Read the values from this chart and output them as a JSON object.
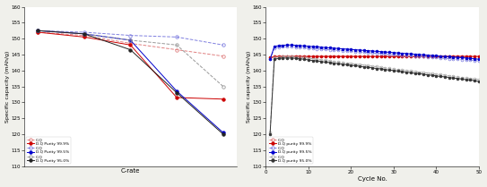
{
  "left": {
    "xlabel": "C-rate",
    "ylabel": "Specific capacity (mAh/g)",
    "ylim": [
      110,
      160
    ],
    "x_positions": [
      0,
      1,
      2,
      3,
      4
    ],
    "series": [
      {
        "label": "C.Q",
        "color": "#e08080",
        "linestyle": "--",
        "marker": "o",
        "fillstyle": "none",
        "values": [
          152.0,
          151.0,
          148.5,
          146.5,
          144.5
        ]
      },
      {
        "label": "D.Q Purity 99.9%",
        "color": "#cc0000",
        "linestyle": "-",
        "marker": "o",
        "fillstyle": "full",
        "values": [
          152.0,
          150.5,
          148.0,
          131.5,
          131.0
        ]
      },
      {
        "label": "C.Q",
        "color": "#8080e0",
        "linestyle": "--",
        "marker": "o",
        "fillstyle": "none",
        "values": [
          152.5,
          152.0,
          151.0,
          150.5,
          148.0
        ]
      },
      {
        "label": "D.Q Purity 99.5%",
        "color": "#0000cc",
        "linestyle": "-",
        "marker": "o",
        "fillstyle": "full",
        "values": [
          152.5,
          151.5,
          149.5,
          133.5,
          120.5
        ]
      },
      {
        "label": "C.Q",
        "color": "#999999",
        "linestyle": "--",
        "marker": "o",
        "fillstyle": "none",
        "values": [
          152.5,
          151.5,
          149.5,
          148.0,
          135.0
        ]
      },
      {
        "label": "D.Q Purity 95.0%",
        "color": "#222222",
        "linestyle": "-",
        "marker": "o",
        "fillstyle": "full",
        "values": [
          152.5,
          151.5,
          146.5,
          133.0,
          120.0
        ]
      }
    ]
  },
  "right": {
    "xlabel": "Cycle No.",
    "ylabel": "Specific capacity (mAh/g)",
    "ylim": [
      110,
      160
    ],
    "xlim": [
      0,
      50
    ],
    "xticks": [
      0,
      10,
      20,
      30,
      40,
      50
    ],
    "series": [
      {
        "label": "C.Q",
        "color": "#e08080",
        "linestyle": "--",
        "marker": "o",
        "fillstyle": "none",
        "x": [
          1,
          2,
          3,
          4,
          5,
          6,
          7,
          8,
          9,
          10,
          11,
          12,
          13,
          14,
          15,
          16,
          17,
          18,
          19,
          20,
          21,
          22,
          23,
          24,
          25,
          26,
          27,
          28,
          29,
          30,
          31,
          32,
          33,
          34,
          35,
          36,
          37,
          38,
          39,
          40,
          41,
          42,
          43,
          44,
          45,
          46,
          47,
          48,
          49,
          50
        ],
        "values": [
          144.0,
          144.3,
          144.4,
          144.4,
          144.4,
          144.4,
          144.4,
          144.4,
          144.4,
          144.4,
          144.4,
          144.4,
          144.4,
          144.4,
          144.4,
          144.4,
          144.4,
          144.4,
          144.4,
          144.4,
          144.4,
          144.4,
          144.4,
          144.4,
          144.4,
          144.4,
          144.4,
          144.4,
          144.4,
          144.4,
          144.4,
          144.4,
          144.4,
          144.4,
          144.4,
          144.4,
          144.4,
          144.4,
          144.4,
          144.4,
          144.4,
          144.4,
          144.4,
          144.4,
          144.4,
          144.4,
          144.4,
          144.4,
          144.4,
          144.4
        ]
      },
      {
        "label": "D.Q purity 99.9%",
        "color": "#cc0000",
        "linestyle": "-",
        "marker": "o",
        "fillstyle": "full",
        "x": [
          1,
          2,
          3,
          4,
          5,
          6,
          7,
          8,
          9,
          10,
          11,
          12,
          13,
          14,
          15,
          16,
          17,
          18,
          19,
          20,
          21,
          22,
          23,
          24,
          25,
          26,
          27,
          28,
          29,
          30,
          31,
          32,
          33,
          34,
          35,
          36,
          37,
          38,
          39,
          40,
          41,
          42,
          43,
          44,
          45,
          46,
          47,
          48,
          49,
          50
        ],
        "values": [
          144.0,
          144.3,
          144.4,
          144.4,
          144.4,
          144.4,
          144.4,
          144.4,
          144.4,
          144.4,
          144.4,
          144.4,
          144.4,
          144.4,
          144.4,
          144.4,
          144.4,
          144.4,
          144.4,
          144.4,
          144.4,
          144.4,
          144.4,
          144.4,
          144.4,
          144.4,
          144.4,
          144.4,
          144.4,
          144.4,
          144.4,
          144.4,
          144.4,
          144.4,
          144.4,
          144.4,
          144.4,
          144.4,
          144.4,
          144.4,
          144.4,
          144.4,
          144.4,
          144.4,
          144.4,
          144.4,
          144.4,
          144.4,
          144.4,
          144.4
        ]
      },
      {
        "label": "C.Q",
        "color": "#8080e0",
        "linestyle": "--",
        "marker": "o",
        "fillstyle": "none",
        "x": [
          1,
          2,
          3,
          4,
          5,
          6,
          7,
          8,
          9,
          10,
          11,
          12,
          13,
          14,
          15,
          16,
          17,
          18,
          19,
          20,
          21,
          22,
          23,
          24,
          25,
          26,
          27,
          28,
          29,
          30,
          31,
          32,
          33,
          34,
          35,
          36,
          37,
          38,
          39,
          40,
          41,
          42,
          43,
          44,
          45,
          46,
          47,
          48,
          49,
          50
        ],
        "values": [
          143.5,
          147.0,
          147.3,
          147.4,
          147.4,
          147.4,
          147.3,
          147.2,
          147.1,
          147.0,
          146.9,
          146.8,
          146.7,
          146.6,
          146.5,
          146.4,
          146.3,
          146.2,
          146.1,
          146.0,
          145.9,
          145.8,
          145.7,
          145.6,
          145.5,
          145.4,
          145.3,
          145.2,
          145.1,
          145.0,
          144.9,
          144.8,
          144.7,
          144.6,
          144.5,
          144.4,
          144.3,
          144.2,
          144.1,
          144.0,
          143.9,
          143.8,
          143.7,
          143.6,
          143.5,
          143.4,
          143.3,
          143.2,
          143.1,
          143.0
        ]
      },
      {
        "label": "D.Q purity 99.5%",
        "color": "#0000cc",
        "linestyle": "-",
        "marker": "o",
        "fillstyle": "full",
        "x": [
          1,
          2,
          3,
          4,
          5,
          6,
          7,
          8,
          9,
          10,
          11,
          12,
          13,
          14,
          15,
          16,
          17,
          18,
          19,
          20,
          21,
          22,
          23,
          24,
          25,
          26,
          27,
          28,
          29,
          30,
          31,
          32,
          33,
          34,
          35,
          36,
          37,
          38,
          39,
          40,
          41,
          42,
          43,
          44,
          45,
          46,
          47,
          48,
          49,
          50
        ],
        "values": [
          143.5,
          147.5,
          147.8,
          147.9,
          148.0,
          148.0,
          147.9,
          147.8,
          147.7,
          147.6,
          147.5,
          147.4,
          147.3,
          147.2,
          147.1,
          147.0,
          146.9,
          146.8,
          146.7,
          146.6,
          146.5,
          146.4,
          146.3,
          146.2,
          146.1,
          146.0,
          145.9,
          145.8,
          145.7,
          145.6,
          145.5,
          145.4,
          145.3,
          145.2,
          145.1,
          145.0,
          144.9,
          144.8,
          144.7,
          144.6,
          144.5,
          144.4,
          144.3,
          144.2,
          144.1,
          144.0,
          143.9,
          143.8,
          143.7,
          143.5
        ]
      },
      {
        "label": "C.Q",
        "color": "#aaaaaa",
        "linestyle": "--",
        "marker": "o",
        "fillstyle": "none",
        "x": [
          1,
          2,
          3,
          4,
          5,
          6,
          7,
          8,
          9,
          10,
          11,
          12,
          13,
          14,
          15,
          16,
          17,
          18,
          19,
          20,
          21,
          22,
          23,
          24,
          25,
          26,
          27,
          28,
          29,
          30,
          31,
          32,
          33,
          34,
          35,
          36,
          37,
          38,
          39,
          40,
          41,
          42,
          43,
          44,
          45,
          46,
          47,
          48,
          49,
          50
        ],
        "values": [
          120.5,
          144.0,
          144.2,
          144.3,
          144.3,
          144.3,
          144.2,
          144.1,
          144.0,
          143.8,
          143.7,
          143.5,
          143.3,
          143.2,
          143.0,
          142.8,
          142.7,
          142.5,
          142.3,
          142.2,
          142.0,
          141.8,
          141.7,
          141.5,
          141.3,
          141.2,
          141.0,
          140.8,
          140.7,
          140.5,
          140.3,
          140.2,
          140.0,
          139.8,
          139.7,
          139.5,
          139.3,
          139.2,
          139.0,
          138.8,
          138.7,
          138.5,
          138.3,
          138.2,
          138.0,
          137.8,
          137.7,
          137.5,
          137.3,
          137.2
        ]
      },
      {
        "label": "D.Q purity 95.0%",
        "color": "#333333",
        "linestyle": "-",
        "marker": "o",
        "fillstyle": "full",
        "x": [
          1,
          2,
          3,
          4,
          5,
          6,
          7,
          8,
          9,
          10,
          11,
          12,
          13,
          14,
          15,
          16,
          17,
          18,
          19,
          20,
          21,
          22,
          23,
          24,
          25,
          26,
          27,
          28,
          29,
          30,
          31,
          32,
          33,
          34,
          35,
          36,
          37,
          38,
          39,
          40,
          41,
          42,
          43,
          44,
          45,
          46,
          47,
          48,
          49,
          50
        ],
        "values": [
          120.0,
          143.5,
          143.8,
          143.9,
          143.9,
          143.9,
          143.8,
          143.7,
          143.5,
          143.3,
          143.1,
          143.0,
          142.8,
          142.6,
          142.5,
          142.3,
          142.1,
          142.0,
          141.8,
          141.6,
          141.5,
          141.3,
          141.1,
          141.0,
          140.8,
          140.6,
          140.5,
          140.3,
          140.1,
          140.0,
          139.8,
          139.6,
          139.5,
          139.3,
          139.1,
          139.0,
          138.8,
          138.6,
          138.5,
          138.3,
          138.1,
          138.0,
          137.8,
          137.6,
          137.5,
          137.3,
          137.1,
          137.0,
          136.8,
          136.5
        ]
      }
    ]
  },
  "bg_color": "#f0f0eb",
  "plot_bg": "#ffffff"
}
